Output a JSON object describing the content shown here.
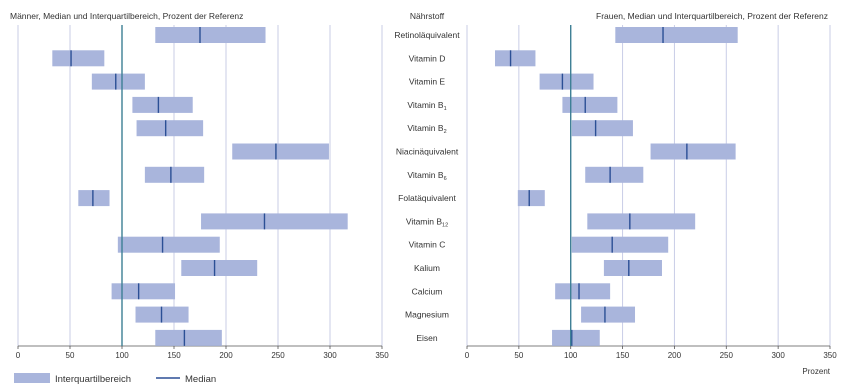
{
  "chart_data": [
    {
      "type": "box",
      "title": "Männer, Median und Interquartilbereich, Prozent der Referenz",
      "xlim": [
        0,
        350
      ],
      "xticks": [
        0,
        50,
        100,
        150,
        200,
        250,
        300,
        350
      ],
      "xlabel": "",
      "categories": [
        "Retinoläquivalent",
        "Vitamin D",
        "Vitamin E",
        "Vitamin B1",
        "Vitamin B2",
        "Niacinäquivalent",
        "Vitamin B6",
        "Folatäquivalent",
        "Vitamin B12",
        "Vitamin C",
        "Kalium",
        "Calcium",
        "Magnesium",
        "Eisen"
      ],
      "q1": [
        132,
        33,
        71,
        110,
        114,
        206,
        122,
        58,
        176,
        96,
        157,
        90,
        113,
        132
      ],
      "median": [
        175,
        51,
        94,
        135,
        142,
        248,
        147,
        72,
        237,
        139,
        189,
        116,
        138,
        160
      ],
      "q3": [
        238,
        83,
        122,
        168,
        178,
        299,
        179,
        88,
        317,
        194,
        230,
        151,
        164,
        196
      ],
      "reference_line": 100
    },
    {
      "type": "box",
      "title": "Frauen, Median und Interquartilbereich, Prozent der Referenz",
      "xlim": [
        0,
        350
      ],
      "xticks": [
        0,
        50,
        100,
        150,
        200,
        250,
        300,
        350
      ],
      "xlabel": "Prozent",
      "categories": [
        "Retinoläquivalent",
        "Vitamin D",
        "Vitamin E",
        "Vitamin B1",
        "Vitamin B2",
        "Niacinäquivalent",
        "Vitamin B6",
        "Folatäquivalent",
        "Vitamin B12",
        "Vitamin C",
        "Kalium",
        "Calcium",
        "Magnesium",
        "Eisen"
      ],
      "q1": [
        143,
        27,
        70,
        92,
        101,
        177,
        114,
        49,
        116,
        101,
        132,
        85,
        110,
        82
      ],
      "median": [
        189,
        42,
        92,
        114,
        124,
        212,
        138,
        60,
        157,
        140,
        156,
        108,
        133,
        101
      ],
      "q3": [
        261,
        66,
        122,
        145,
        160,
        259,
        170,
        75,
        220,
        194,
        188,
        138,
        162,
        128
      ],
      "reference_line": 100
    }
  ],
  "category_header": "Nährstoff",
  "category_labels": [
    {
      "text": "Retinoläquivalent",
      "sub": ""
    },
    {
      "text": "Vitamin D",
      "sub": ""
    },
    {
      "text": "Vitamin E",
      "sub": ""
    },
    {
      "text": "Vitamin B",
      "sub": "1"
    },
    {
      "text": "Vitamin B",
      "sub": "2"
    },
    {
      "text": "Niacinäquivalent",
      "sub": ""
    },
    {
      "text": "Vitamin B",
      "sub": "6"
    },
    {
      "text": "Folatäquivalent",
      "sub": ""
    },
    {
      "text": "Vitamin B",
      "sub": "12"
    },
    {
      "text": "Vitamin C",
      "sub": ""
    },
    {
      "text": "Kalium",
      "sub": ""
    },
    {
      "text": "Calcium",
      "sub": ""
    },
    {
      "text": "Magnesium",
      "sub": ""
    },
    {
      "text": "Eisen",
      "sub": ""
    }
  ],
  "legend": {
    "iqr": "Interquartilbereich",
    "median": "Median"
  },
  "colors": {
    "bar": "#a9b5dc",
    "median": "#2b4f95",
    "reference": "#3d7f95",
    "grid": "#c9cde6",
    "text": "#333333"
  }
}
